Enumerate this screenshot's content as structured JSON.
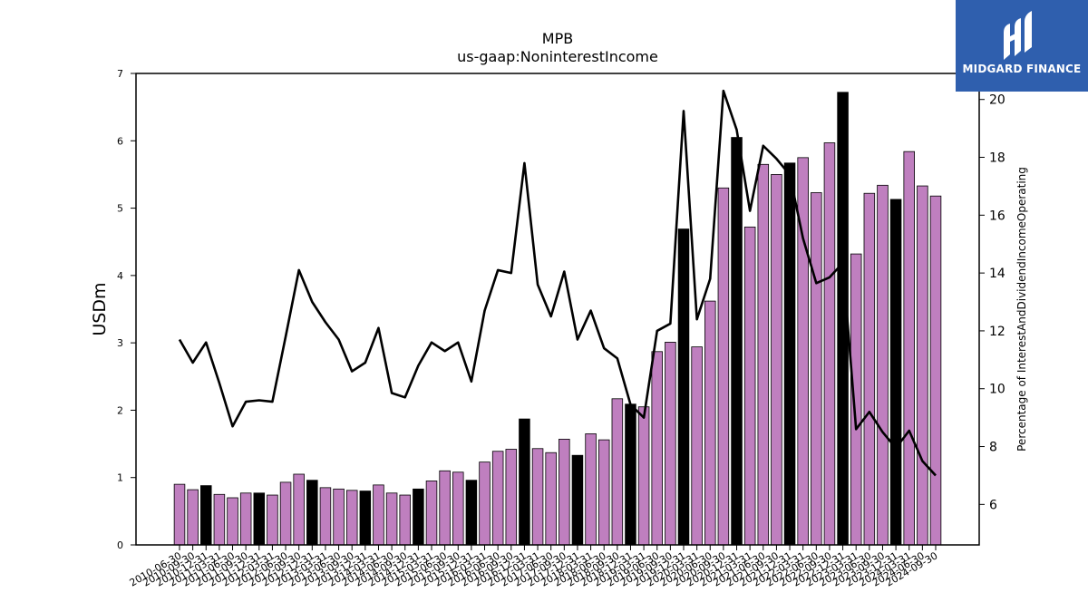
{
  "chart_data": {
    "type": "bar",
    "title": "MPB",
    "subtitle": "us-gaap:NoninterestIncome",
    "ylabel": "USDm",
    "y2label": "Percentage of InterestAndDividendIncomeOperating",
    "ylim": [
      0,
      7
    ],
    "y2lim": [
      4.6,
      20.9
    ],
    "yticks": [
      0,
      1,
      2,
      3,
      4,
      5,
      6,
      7
    ],
    "y2ticks": [
      6,
      8,
      10,
      12,
      14,
      16,
      18,
      20
    ],
    "bar_colors": {
      "quarter": "#bf7fbf",
      "annual": "#000000"
    },
    "categories": [
      "2010-06-30",
      "2010-09-30",
      "2010-12-31",
      "2011-03-31",
      "2011-06-30",
      "2011-09-30",
      "2011-12-31",
      "2012-03-31",
      "2012-06-30",
      "2012-09-30",
      "2012-12-31",
      "2013-03-31",
      "2013-06-30",
      "2013-09-30",
      "2013-12-31",
      "2014-03-31",
      "2014-06-30",
      "2014-09-30",
      "2014-12-31",
      "2015-03-31",
      "2015-06-30",
      "2015-09-30",
      "2015-12-31",
      "2016-03-31",
      "2016-06-30",
      "2016-09-30",
      "2016-12-31",
      "2017-03-31",
      "2017-06-30",
      "2017-09-30",
      "2017-12-31",
      "2018-03-31",
      "2018-06-30",
      "2018-09-30",
      "2018-12-31",
      "2019-03-31",
      "2019-06-30",
      "2019-09-30",
      "2019-12-31",
      "2020-03-31",
      "2020-06-30",
      "2020-09-30",
      "2020-12-31",
      "2021-03-31",
      "2021-06-30",
      "2021-09-30",
      "2021-12-31",
      "2022-03-31",
      "2022-06-30",
      "2022-09-30",
      "2022-12-31",
      "2023-03-31",
      "2023-06-30",
      "2023-09-30",
      "2023-12-31",
      "2024-03-31",
      "2024-06-30",
      "2024-09-30"
    ],
    "x_tick_labels": [
      "2010-06-30",
      "2010-09-30",
      "2010-12-31",
      "2011-03-31",
      "2011-06-30",
      "2011-09-30",
      "2011-12-31",
      "2012-03-31",
      "2012-06-30",
      "2012-09-30",
      "2012-12-31",
      "2013-03-31",
      "2013-06-30",
      "2013-09-30",
      "2013-12-31",
      "2014-03-31",
      "2014-06-30",
      "2014-09-30",
      "2014-12-31",
      "2015-03-31",
      "2015-06-30",
      "2015-09-30",
      "2015-12-31",
      "2016-03-31",
      "2016-06-30",
      "2016-09-30",
      "2016-12-31",
      "2017-03-31",
      "2017-06-30",
      "2017-09-30",
      "2017-12-31",
      "2018-03-31",
      "2018-06-30",
      "2018-09-30",
      "2018-12-31",
      "2019-03-31",
      "2019-06-30",
      "2019-09-30",
      "2019-12-31",
      "2020-03-31",
      "2020-06-30",
      "2020-09-30",
      "2020-12-31",
      "2021-03-31",
      "2021-06-30",
      "2021-09-30",
      "2021-12-31",
      "2022-03-31",
      "2022-06-30",
      "2022-09-30",
      "2022-12-31",
      "2023-03-31",
      "2023-06-30",
      "2023-09-30",
      "2023-12-31",
      "2024-03-31",
      "2024-06-30",
      "2024-09-30"
    ],
    "series": [
      {
        "type": "bar",
        "axis": "left",
        "values": [
          0.9,
          0.82,
          0.88,
          0.75,
          0.7,
          0.77,
          0.77,
          0.74,
          0.93,
          1.05,
          0.96,
          0.85,
          0.83,
          0.81,
          0.8,
          0.89,
          0.77,
          0.74,
          0.83,
          0.95,
          1.1,
          1.08,
          0.96,
          1.23,
          1.39,
          1.42,
          1.87,
          1.43,
          1.37,
          1.57,
          1.33,
          1.65,
          1.56,
          2.17,
          2.09,
          2.05,
          2.87,
          3.01,
          4.69,
          2.94,
          3.62,
          5.3,
          6.05,
          4.72,
          5.65,
          5.5,
          5.67,
          5.75,
          5.23,
          5.97,
          6.72,
          4.32,
          5.22,
          5.34,
          5.13,
          5.84,
          5.33,
          5.18
        ],
        "annual": [
          false,
          false,
          true,
          false,
          false,
          false,
          true,
          false,
          false,
          false,
          true,
          false,
          false,
          false,
          true,
          false,
          false,
          false,
          true,
          false,
          false,
          false,
          true,
          false,
          false,
          false,
          true,
          false,
          false,
          false,
          true,
          false,
          false,
          false,
          true,
          false,
          false,
          false,
          true,
          false,
          false,
          false,
          true,
          false,
          false,
          false,
          true,
          false,
          false,
          false,
          true,
          false,
          false,
          false,
          true,
          false,
          false,
          false
        ]
      },
      {
        "type": "line",
        "axis": "right",
        "color": "#000000",
        "values": [
          11.7,
          10.9,
          11.6,
          10.2,
          8.7,
          9.55,
          9.6,
          9.55,
          11.8,
          14.1,
          13.0,
          12.3,
          11.7,
          10.6,
          10.9,
          12.1,
          9.85,
          9.7,
          10.8,
          11.6,
          11.3,
          11.6,
          10.25,
          12.7,
          14.1,
          14.0,
          17.8,
          13.6,
          12.5,
          14.05,
          11.7,
          12.7,
          11.4,
          11.05,
          9.45,
          9.0,
          12.0,
          12.25,
          19.6,
          12.4,
          13.8,
          20.3,
          18.95,
          16.15,
          18.4,
          17.95,
          17.4,
          15.2,
          13.65,
          13.85,
          14.35,
          8.6,
          9.2,
          8.5,
          7.95,
          8.55,
          7.5,
          7.0
        ]
      }
    ]
  },
  "logo": {
    "text": "MIDGARD FINANCE"
  }
}
